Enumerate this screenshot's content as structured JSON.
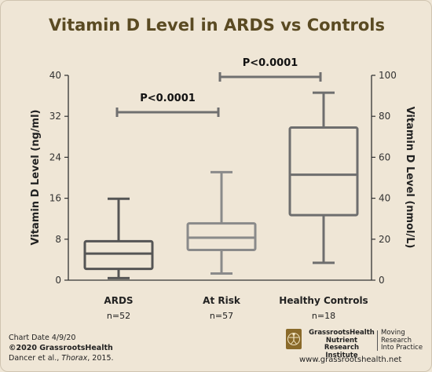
{
  "chart_data": {
    "type": "box",
    "title": "Vitamin D Level in ARDS vs Controls",
    "ylabel_left": "Vitamin D Level (ng/ml)",
    "ylabel_right": "Vitamin D Level (nmol/L)",
    "ylim_left": [
      0,
      40
    ],
    "ylim_right": [
      0,
      100
    ],
    "yticks_left": [
      "0",
      "8",
      "16",
      "24",
      "32",
      "40"
    ],
    "yticks_right": [
      "0",
      "20",
      "40",
      "60",
      "80",
      "100"
    ],
    "grid": false,
    "categories": [
      "ARDS",
      "At Risk",
      "Healthy Controls"
    ],
    "n_labels": [
      "n=52",
      "n=57",
      "n=18"
    ],
    "boxes": [
      {
        "category": "ARDS",
        "min": 0.4,
        "q1": 2.2,
        "median": 5.2,
        "q3": 7.6,
        "max": 15.9,
        "color": "#555555"
      },
      {
        "category": "At Risk",
        "min": 1.3,
        "q1": 5.9,
        "median": 8.3,
        "q3": 11.1,
        "max": 21.1,
        "color": "#8a8a8a"
      },
      {
        "category": "Healthy Controls",
        "min": 3.4,
        "q1": 12.7,
        "median": 20.6,
        "q3": 29.8,
        "max": 36.6,
        "color": "#6e6e6e"
      }
    ],
    "comparisons": [
      {
        "from": "ARDS",
        "to": "At Risk",
        "label": "P<0.0001"
      },
      {
        "from": "At Risk",
        "to": "Healthy Controls",
        "label": "P<0.0001"
      }
    ]
  },
  "footer": {
    "chart_date": "Chart Date 4/9/20",
    "copyright": "©2020 GrassrootsHealth",
    "citation_prefix": "Dancer et al., ",
    "citation_journal": "Thorax",
    "citation_suffix": ", 2015.",
    "org_line1": "GrassrootsHealth",
    "org_line2": "Nutrient",
    "org_line3": "Research Institute",
    "tagline_line1": "Moving",
    "tagline_line2": "Research",
    "tagline_line3": "Into Practice",
    "website": "www.grassrootshealth.net",
    "logo_icon": "vitruvian-man-icon"
  },
  "colors": {
    "background": "#efe6d6",
    "title": "#5a4a22",
    "bracket": "#707070"
  }
}
